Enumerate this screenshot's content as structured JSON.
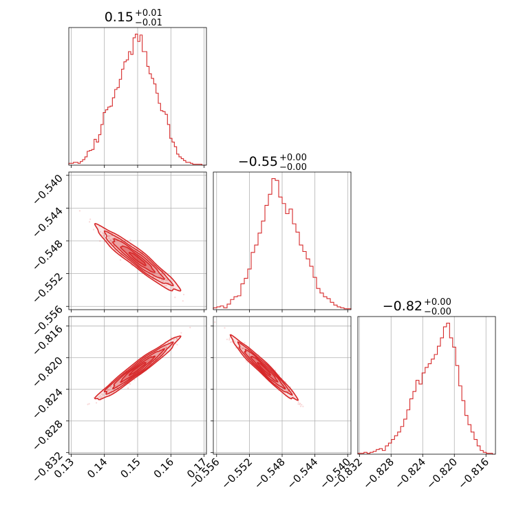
{
  "chart_data": {
    "type": "corner",
    "color": "#d62728",
    "grid": true,
    "parameters": [
      {
        "title": "0.15",
        "err_plus": "+0.01",
        "err_minus": "−0.01",
        "range": [
          0.1293,
          0.1707
        ],
        "ticks": [
          0.13,
          0.14,
          0.15,
          0.16,
          0.17
        ],
        "tick_labels": [
          "0.13",
          "0.14",
          "0.15",
          "0.16",
          "0.17"
        ],
        "mean": 0.15,
        "std": 0.005,
        "hist_counts": [
          2,
          2,
          3,
          3,
          2,
          4,
          6,
          9,
          15,
          16,
          17,
          28,
          25,
          33,
          44,
          57,
          60,
          63,
          64,
          73,
          82,
          84,
          93,
          104,
          112,
          114,
          123,
          120,
          138,
          142,
          134,
          141,
          123,
          123,
          107,
          99,
          94,
          88,
          78,
          67,
          59,
          58,
          55,
          44,
          29,
          25,
          20,
          12,
          9,
          7,
          5,
          3,
          3,
          2,
          1,
          1,
          1,
          1,
          0,
          0
        ]
      },
      {
        "title": "−0.55",
        "err_plus": "+0.00",
        "err_minus": "−0.00",
        "range": [
          -0.5564,
          -0.5396
        ],
        "ticks": [
          -0.556,
          -0.552,
          -0.548,
          -0.544,
          -0.54
        ],
        "tick_labels": [
          "−0.556",
          "−0.552",
          "−0.548",
          "−0.544",
          "−0.540"
        ],
        "mean": -0.5502,
        "std": 0.0016,
        "hist_counts": [
          2,
          3,
          4,
          2,
          6,
          11,
          14,
          15,
          28,
          34,
          44,
          62,
          70,
          83,
          96,
          113,
          125,
          142,
          140,
          122,
          115,
          104,
          109,
          93,
          84,
          70,
          63,
          55,
          47,
          35,
          23,
          18,
          14,
          12,
          8,
          5,
          3,
          2,
          1,
          1
        ]
      },
      {
        "title": "−0.82",
        "err_plus": "+0.00",
        "err_minus": "−0.00",
        "range": [
          -0.8322,
          -0.8148
        ],
        "ticks": [
          -0.832,
          -0.828,
          -0.824,
          -0.82,
          -0.816
        ],
        "tick_labels": [
          "−0.832",
          "−0.828",
          "−0.824",
          "−0.820",
          "−0.816"
        ],
        "mean": -0.8214,
        "std": 0.0016,
        "hist_counts": [
          1,
          1,
          2,
          1,
          2,
          3,
          5,
          6,
          4,
          9,
          12,
          16,
          20,
          24,
          30,
          38,
          48,
          60,
          68,
          80,
          76,
          88,
          94,
          98,
          103,
          108,
          117,
          126,
          138,
          142,
          126,
          116,
          96,
          74,
          58,
          42,
          32,
          24,
          16,
          9,
          4,
          2,
          1,
          1,
          0
        ]
      }
    ],
    "correlations": [
      {
        "x": 0,
        "y": 1,
        "rho": -0.95
      },
      {
        "x": 0,
        "y": 2,
        "rho": 0.97
      },
      {
        "x": 1,
        "y": 2,
        "rho": -0.97
      }
    ]
  }
}
